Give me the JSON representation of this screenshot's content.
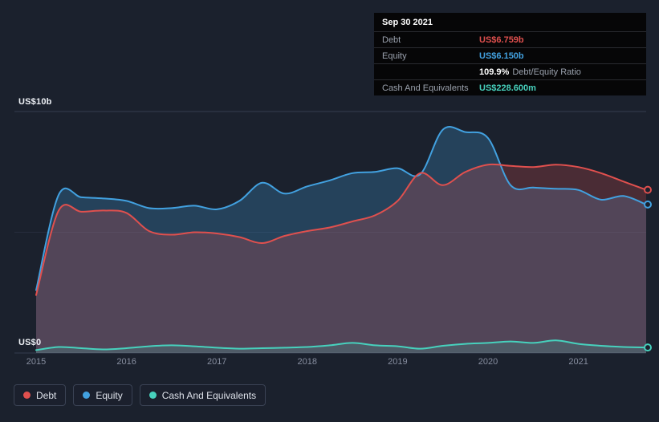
{
  "colors": {
    "debt": "#e0504e",
    "equity": "#42a1e0",
    "cash": "#47d1bd",
    "background": "#1b212d",
    "grid": "#363d4f",
    "grid_faint": "#272d3c",
    "tick_text": "#878e9f"
  },
  "tooltip": {
    "date": "Sep 30 2021",
    "debt_label": "Debt",
    "debt_value": "US$6.759b",
    "equity_label": "Equity",
    "equity_value": "US$6.150b",
    "ratio_value": "109.9%",
    "ratio_label": "Debt/Equity Ratio",
    "cash_label": "Cash And Equivalents",
    "cash_value": "US$228.600m"
  },
  "legend": {
    "debt": "Debt",
    "equity": "Equity",
    "cash": "Cash And Equivalents"
  },
  "chart_data": {
    "type": "area",
    "title": "",
    "xlabel": "",
    "ylabel": "",
    "ylim": [
      0,
      10
    ],
    "xlim": [
      2015,
      2021.75
    ],
    "grid": true,
    "legend_position": "bottom-left",
    "y_axis": {
      "top": "US$10b",
      "bottom": "US$0"
    },
    "x_tick_labels": [
      "2015",
      "2016",
      "2017",
      "2018",
      "2019",
      "2020",
      "2021"
    ],
    "x": [
      2015,
      2015.25,
      2015.5,
      2015.75,
      2016,
      2016.25,
      2016.5,
      2016.75,
      2017,
      2017.25,
      2017.5,
      2017.75,
      2018,
      2018.25,
      2018.5,
      2018.75,
      2019,
      2019.25,
      2019.5,
      2019.75,
      2020,
      2020.25,
      2020.5,
      2020.75,
      2021,
      2021.25,
      2021.5,
      2021.75
    ],
    "series": [
      {
        "name": "Debt",
        "unit": "US$b",
        "color": "#e0504e",
        "values": [
          2.4,
          5.9,
          5.85,
          5.9,
          5.8,
          5.05,
          4.9,
          5.0,
          4.95,
          4.8,
          4.55,
          4.85,
          5.05,
          5.2,
          5.45,
          5.7,
          6.3,
          7.45,
          6.95,
          7.5,
          7.8,
          7.75,
          7.7,
          7.8,
          7.7,
          7.45,
          7.1,
          6.759
        ]
      },
      {
        "name": "Equity",
        "unit": "US$b",
        "color": "#42a1e0",
        "values": [
          2.6,
          6.55,
          6.45,
          6.4,
          6.3,
          6.0,
          6.0,
          6.1,
          5.95,
          6.3,
          7.05,
          6.6,
          6.9,
          7.15,
          7.45,
          7.5,
          7.65,
          7.4,
          9.25,
          9.15,
          8.9,
          6.95,
          6.85,
          6.8,
          6.75,
          6.35,
          6.5,
          6.15
        ]
      },
      {
        "name": "Cash And Equivalents",
        "unit": "US$b",
        "color": "#47d1bd",
        "values": [
          0.12,
          0.25,
          0.2,
          0.15,
          0.2,
          0.28,
          0.32,
          0.28,
          0.22,
          0.18,
          0.2,
          0.22,
          0.25,
          0.32,
          0.42,
          0.32,
          0.28,
          0.18,
          0.3,
          0.38,
          0.42,
          0.48,
          0.42,
          0.52,
          0.38,
          0.3,
          0.25,
          0.2286
        ]
      }
    ]
  }
}
